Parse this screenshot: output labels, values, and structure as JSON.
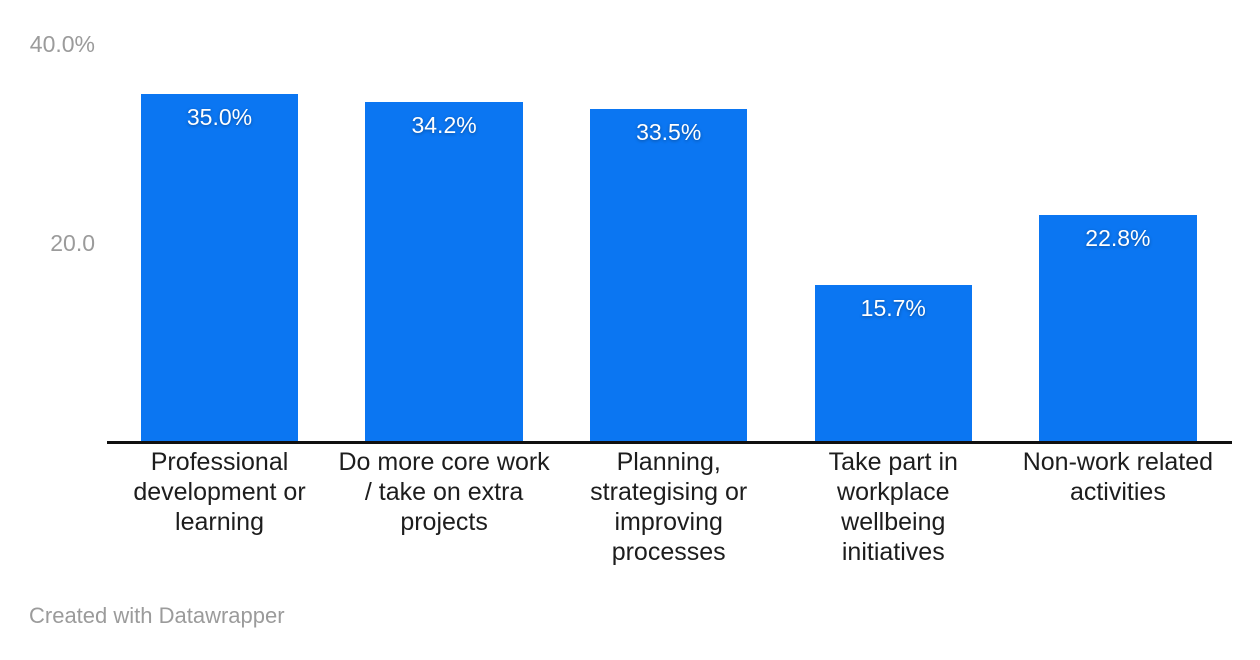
{
  "chart_data": {
    "type": "bar",
    "title": "",
    "xlabel": "",
    "ylabel": "",
    "categories": [
      "Professional development or learning",
      "Do more core work / take on extra projects",
      "Planning, strategising or improving processes",
      "Take part in workplace wellbeing initiatives",
      "Non-work related activities"
    ],
    "categories_lines": [
      [
        "Professional",
        "development or",
        "learning"
      ],
      [
        "Do more core work",
        "/ take on extra",
        "projects"
      ],
      [
        "Planning,",
        "strategising or",
        "improving",
        "processes"
      ],
      [
        "Take part in",
        "workplace",
        "wellbeing",
        "initiatives"
      ],
      [
        "Non-work related",
        "activities"
      ]
    ],
    "values": [
      35.0,
      34.2,
      33.5,
      15.7,
      22.8
    ],
    "value_labels": [
      "35.0%",
      "34.2%",
      "33.5%",
      "15.7%",
      "22.8%"
    ],
    "ylim": [
      0,
      40
    ],
    "yticks": [
      {
        "value": 40,
        "label": "40.0%"
      },
      {
        "value": 20,
        "label": "20.0"
      }
    ],
    "grid": false,
    "legend": "none",
    "bar_color": "#0b76f2"
  },
  "colors": {
    "background": "#ffffff",
    "bar": "#0b76f2",
    "axis_line": "#101010",
    "tick_label": "#9b9b9b",
    "category_label": "#1d1d1d",
    "value_label": "#ffffff",
    "footer_text": "#9b9b9b"
  },
  "footer": {
    "credit": "Created with Datawrapper"
  }
}
